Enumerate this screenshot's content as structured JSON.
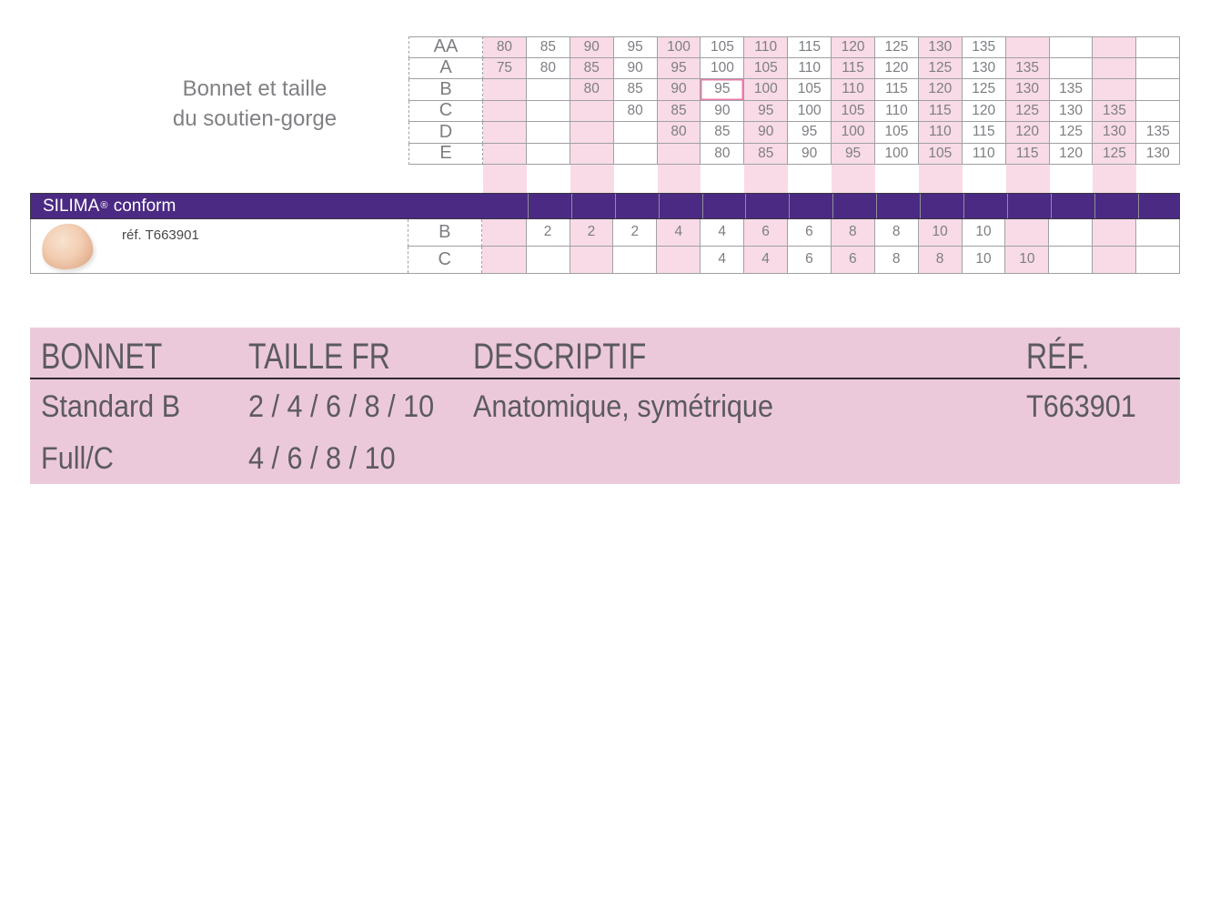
{
  "bra_size_chart": {
    "caption_line1": "Bonnet et taille",
    "caption_line2": "du soutien-gorge",
    "columns_count": 16,
    "rows": [
      {
        "label": "AA",
        "values": [
          "80",
          "85",
          "90",
          "95",
          "100",
          "105",
          "110",
          "115",
          "120",
          "125",
          "130",
          "135",
          "",
          "",
          "",
          ""
        ]
      },
      {
        "label": "A",
        "values": [
          "75",
          "80",
          "85",
          "90",
          "95",
          "100",
          "105",
          "110",
          "115",
          "120",
          "125",
          "130",
          "135",
          "",
          "",
          ""
        ]
      },
      {
        "label": "B",
        "values": [
          "",
          "",
          "80",
          "85",
          "90",
          "95",
          "100",
          "105",
          "110",
          "115",
          "120",
          "125",
          "130",
          "135",
          "",
          ""
        ]
      },
      {
        "label": "C",
        "values": [
          "",
          "",
          "",
          "80",
          "85",
          "90",
          "95",
          "100",
          "105",
          "110",
          "115",
          "120",
          "125",
          "130",
          "135",
          ""
        ]
      },
      {
        "label": "D",
        "values": [
          "",
          "",
          "",
          "",
          "80",
          "85",
          "90",
          "95",
          "100",
          "105",
          "110",
          "115",
          "120",
          "125",
          "130",
          "135"
        ]
      },
      {
        "label": "E",
        "values": [
          "",
          "",
          "",
          "",
          "",
          "80",
          "85",
          "90",
          "95",
          "100",
          "105",
          "110",
          "115",
          "120",
          "125",
          "130"
        ]
      }
    ],
    "highlighted_cell": {
      "row_label": "B",
      "value": "95",
      "row_index": 2,
      "col_index": 5
    }
  },
  "brand_band": {
    "brand": "SILIMA",
    "registered_mark": "®",
    "product_line": "conform"
  },
  "product": {
    "reference": "réf. T663901",
    "image": "breast-prosthesis-photo",
    "size_rows": [
      {
        "label": "B",
        "values": [
          "",
          "2",
          "2",
          "2",
          "4",
          "4",
          "6",
          "6",
          "8",
          "8",
          "10",
          "10",
          "",
          "",
          "",
          ""
        ]
      },
      {
        "label": "C",
        "values": [
          "",
          "",
          "",
          "",
          "",
          "4",
          "4",
          "6",
          "6",
          "8",
          "8",
          "10",
          "10",
          "",
          "",
          ""
        ]
      }
    ]
  },
  "spec_table": {
    "headers": [
      "BONNET",
      "TAILLE FR",
      "DESCRIPTIF",
      "RÉF."
    ],
    "rows": [
      {
        "bonnet": "Standard B",
        "taille_fr": "2 / 4 / 6 / 8 / 10",
        "descriptif": "Anatomique, symétrique",
        "ref": "T663901"
      },
      {
        "bonnet": "Full/C",
        "taille_fr": "4 / 6 / 8 / 10",
        "descriptif": "",
        "ref": ""
      }
    ]
  },
  "colors": {
    "stripe_pink": "#f8dbe7",
    "spec_table_pink": "#ecc9da",
    "brand_purple": "#4b2a84",
    "grid_border": "#a0a0a4",
    "highlight_border_pink": "#ee79ab",
    "grid_text_gray": "#7d7e82",
    "spec_text_gray": "#5c5a61"
  }
}
